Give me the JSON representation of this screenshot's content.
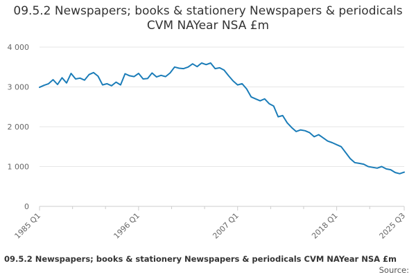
{
  "chart_data": {
    "type": "line",
    "title": "09.5.2 Newspapers; books & stationery Newspapers & periodicals CVM NAYear NSA £m",
    "footer_title": "09.5.2 Newspapers; books & stationery Newspapers & periodicals CVM NAYear NSA £m",
    "source_label": "Source:",
    "ylim": [
      0,
      4000
    ],
    "y_ticks": [
      {
        "value": 0,
        "label": "0"
      },
      {
        "value": 1000,
        "label": "1 000"
      },
      {
        "value": 2000,
        "label": "2 000"
      },
      {
        "value": 3000,
        "label": "3 000"
      },
      {
        "value": 4000,
        "label": "4 000"
      }
    ],
    "x_range": [
      1985.0,
      2025.5
    ],
    "x_tick_labels": [
      {
        "value": 1985.0,
        "label": "1985 Q1"
      },
      {
        "value": 1996.0,
        "label": "1996 Q1"
      },
      {
        "value": 2007.0,
        "label": "2007 Q1"
      },
      {
        "value": 2018.0,
        "label": "2018 Q1"
      },
      {
        "value": 2025.5,
        "label": "2025 Q3"
      }
    ],
    "x_minor_ticks": [
      1988.67,
      1992.33,
      1999.67,
      2003.33,
      2010.67,
      2014.33,
      2021.67
    ],
    "grid": true,
    "colors": {
      "line": "#1a7cb8",
      "grid": "#e6e6e6",
      "axis": "#cccccc"
    },
    "series": [
      {
        "x": [
          1985.0,
          1985.5,
          1986.0,
          1986.5,
          1987.0,
          1987.5,
          1988.0,
          1988.5,
          1989.0,
          1989.5,
          1990.0,
          1990.5,
          1991.0,
          1991.5,
          1992.0,
          1992.5,
          1993.0,
          1993.5,
          1994.0,
          1994.5,
          1995.0,
          1995.5,
          1996.0,
          1996.5,
          1997.0,
          1997.5,
          1998.0,
          1998.5,
          1999.0,
          1999.5,
          2000.0,
          2000.5,
          2001.0,
          2001.5,
          2002.0,
          2002.5,
          2003.0,
          2003.5,
          2004.0,
          2004.5,
          2005.0,
          2005.5,
          2006.0,
          2006.5,
          2007.0,
          2007.5,
          2008.0,
          2008.5,
          2009.0,
          2009.5,
          2010.0,
          2010.5,
          2011.0,
          2011.5,
          2012.0,
          2012.5,
          2013.0,
          2013.5,
          2014.0,
          2014.5,
          2015.0,
          2015.5,
          2016.0,
          2016.5,
          2017.0,
          2017.5,
          2018.0,
          2018.5,
          2019.0,
          2019.5,
          2020.0,
          2020.5,
          2021.0,
          2021.5,
          2022.0,
          2022.5,
          2023.0,
          2023.5,
          2024.0,
          2024.5,
          2025.0,
          2025.5
        ],
        "values": [
          2990,
          3040,
          3080,
          3180,
          3060,
          3230,
          3100,
          3340,
          3200,
          3220,
          3170,
          3310,
          3360,
          3270,
          3050,
          3080,
          3030,
          3120,
          3050,
          3330,
          3280,
          3260,
          3340,
          3200,
          3210,
          3350,
          3250,
          3290,
          3260,
          3350,
          3500,
          3470,
          3460,
          3500,
          3580,
          3510,
          3600,
          3560,
          3600,
          3460,
          3480,
          3420,
          3280,
          3150,
          3050,
          3080,
          2950,
          2750,
          2700,
          2650,
          2700,
          2580,
          2520,
          2250,
          2280,
          2100,
          1980,
          1880,
          1920,
          1900,
          1850,
          1750,
          1800,
          1720,
          1640,
          1600,
          1550,
          1500,
          1350,
          1200,
          1100,
          1080,
          1060,
          1000,
          980,
          960,
          1000,
          940,
          920,
          850,
          820,
          860
        ]
      }
    ]
  }
}
